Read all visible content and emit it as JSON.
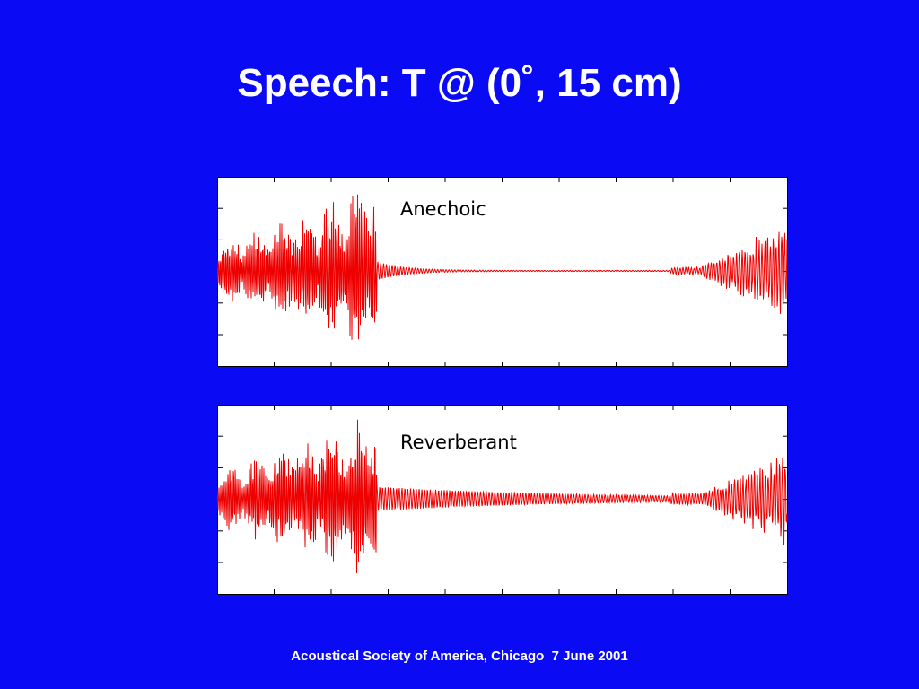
{
  "title": "Speech: T @ (0˚, 15 cm)",
  "panels": [
    {
      "label": "Anechoic"
    },
    {
      "label": "Reverberant"
    }
  ],
  "footer": "Acoustical Society of America, Chicago  7 June 2001"
}
